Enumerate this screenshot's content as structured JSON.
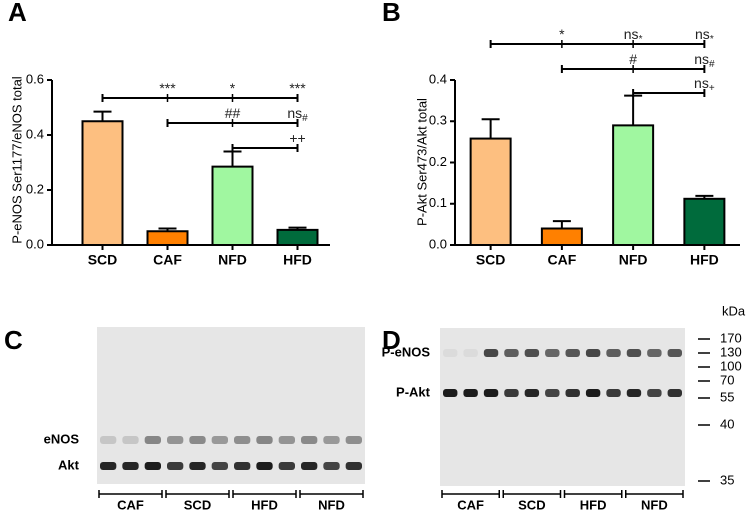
{
  "chart_data": [
    {
      "type": "bar",
      "panel": "A",
      "y_label": "P-eNOS Ser1177/eNOS total",
      "categories": [
        "SCD",
        "CAF",
        "NFD",
        "HFD"
      ],
      "values": [
        0.45,
        0.05,
        0.285,
        0.055
      ],
      "errors": [
        0.035,
        0.01,
        0.055,
        0.008
      ],
      "colors": [
        "#fdbf80",
        "#ff8000",
        "#a0f7a0",
        "#006b3c"
      ],
      "ylim": [
        0,
        0.6
      ],
      "yticks": [
        {
          "value": 0,
          "label": "0.0"
        },
        0.2,
        0.4,
        0.6
      ],
      "annotations": [
        {
          "span": [
            "SCD",
            "HFD"
          ],
          "labels": [
            {
              "category": "CAF",
              "text": "***"
            },
            {
              "category": "NFD",
              "text": "*"
            },
            {
              "category": "HFD",
              "text": "***"
            }
          ]
        },
        {
          "span": [
            "CAF",
            "HFD"
          ],
          "labels": [
            {
              "category": "NFD",
              "text": "##"
            },
            {
              "category": "HFD",
              "text": "ns",
              "sub": "#"
            }
          ]
        },
        {
          "span": [
            "NFD",
            "HFD"
          ],
          "labels": [
            {
              "category": "HFD",
              "text": "++"
            }
          ]
        }
      ]
    },
    {
      "type": "bar",
      "panel": "B",
      "y_label": "P-Akt Ser473/Akt total",
      "categories": [
        "SCD",
        "CAF",
        "NFD",
        "HFD"
      ],
      "values": [
        0.258,
        0.04,
        0.29,
        0.112
      ],
      "errors": [
        0.047,
        0.018,
        0.072,
        0.007
      ],
      "colors": [
        "#fdbf80",
        "#ff8000",
        "#a0f7a0",
        "#006b3c"
      ],
      "ylim": [
        0,
        0.4
      ],
      "yticks": [
        {
          "value": 0,
          "label": "0.0"
        },
        0.1,
        0.2,
        0.3,
        0.4
      ],
      "annotations": [
        {
          "span": [
            "SCD",
            "HFD"
          ],
          "labels": [
            {
              "category": "CAF",
              "text": "*"
            },
            {
              "category": "NFD",
              "text": "ns",
              "sub": "*"
            },
            {
              "category": "HFD",
              "text": "ns",
              "sub": "*"
            }
          ]
        },
        {
          "span": [
            "CAF",
            "HFD"
          ],
          "labels": [
            {
              "category": "NFD",
              "text": "#"
            },
            {
              "category": "HFD",
              "text": "ns",
              "sub": "#"
            }
          ]
        },
        {
          "span": [
            "NFD",
            "HFD"
          ],
          "labels": [
            {
              "category": "HFD",
              "text": "ns",
              "sub": "+"
            }
          ]
        }
      ]
    }
  ],
  "blots": [
    {
      "panel": "C",
      "rows": [
        "eNOS",
        "Akt"
      ],
      "groups": [
        "CAF",
        "SCD",
        "HFD",
        "NFD"
      ]
    },
    {
      "panel": "D",
      "rows": [
        "P-eNOS",
        "P-Akt"
      ],
      "groups": [
        "CAF",
        "SCD",
        "HFD",
        "NFD"
      ],
      "marker_unit": "kDa",
      "markers": [
        170,
        130,
        100,
        70,
        55,
        40,
        35
      ]
    }
  ]
}
